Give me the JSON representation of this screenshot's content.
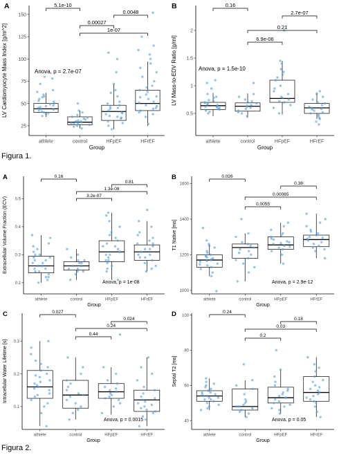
{
  "figure1_caption": "Figura 1.",
  "figure2_caption": "Figura 2.",
  "point_color": "#4e9de0",
  "chart_data": [
    {
      "id": "f1a",
      "letter": "A",
      "type": "box",
      "categories": [
        "athlete",
        "control",
        "HFpEF",
        "HFrEF"
      ],
      "xlabel": "Group",
      "ylabel": "LV Cardiomyocyte Mass Index [g/m^2]",
      "ylim": [
        14,
        160
      ],
      "yticks": [
        25,
        50,
        75,
        100,
        125,
        150
      ],
      "boxes": [
        {
          "min": 35,
          "q1": 40,
          "median": 44,
          "q3": 50,
          "max": 62
        },
        {
          "min": 22,
          "q1": 26,
          "median": 29,
          "q3": 35,
          "max": 42
        },
        {
          "min": 21,
          "q1": 31,
          "median": 41,
          "q3": 48,
          "max": 72
        },
        {
          "min": 25,
          "q1": 42,
          "median": 50,
          "q3": 65,
          "max": 97
        }
      ],
      "points": [
        [
          48,
          52,
          45,
          40,
          43,
          55,
          60,
          47,
          39,
          44,
          42,
          50,
          58,
          46,
          38,
          41,
          53,
          49,
          57,
          36,
          63,
          65,
          72,
          78,
          80
        ],
        [
          27,
          30,
          25,
          33,
          29,
          35,
          24,
          31,
          28,
          26,
          37,
          40,
          22,
          34,
          30,
          27,
          42,
          50,
          32,
          29
        ],
        [
          21,
          25,
          30,
          35,
          38,
          42,
          45,
          48,
          40,
          33,
          52,
          58,
          65,
          72,
          28,
          36,
          44,
          50,
          62,
          85,
          100,
          107,
          34,
          39,
          46
        ],
        [
          27,
          35,
          40,
          45,
          48,
          52,
          55,
          60,
          65,
          70,
          75,
          80,
          85,
          90,
          95,
          100,
          105,
          115,
          125,
          152,
          42,
          47,
          51,
          58,
          63,
          38,
          44,
          57,
          68,
          110
        ]
      ],
      "anova": "Anova, p = 2.7e-07",
      "brackets": [
        {
          "from": "athlete",
          "to": "control",
          "label": "5.1e-10"
        },
        {
          "from": "control",
          "to": "HFrEF",
          "label": "1e-07"
        },
        {
          "from": "control",
          "to": "HFpEF",
          "label": "0.00027"
        },
        {
          "from": "HFpEF",
          "to": "HFrEF",
          "label": "0.0048"
        }
      ]
    },
    {
      "id": "f1b",
      "letter": "B",
      "type": "box",
      "categories": [
        "athlete",
        "control",
        "HFpEF",
        "HFrEF"
      ],
      "xlabel": "Group",
      "ylabel": "LV Mass-to-EDV Ratio [g/ml]",
      "ylim": [
        0.1,
        2.45
      ],
      "yticks": [
        0.5,
        1.0,
        1.5,
        2.0
      ],
      "boxes": [
        {
          "min": 0.45,
          "q1": 0.57,
          "median": 0.64,
          "q3": 0.7,
          "max": 0.87
        },
        {
          "min": 0.42,
          "q1": 0.54,
          "median": 0.63,
          "q3": 0.69,
          "max": 0.86
        },
        {
          "min": 0.48,
          "q1": 0.7,
          "median": 0.77,
          "q3": 1.1,
          "max": 1.45
        },
        {
          "min": 0.4,
          "q1": 0.5,
          "median": 0.6,
          "q3": 0.68,
          "max": 0.88
        }
      ],
      "points": [
        [
          0.55,
          0.6,
          0.65,
          0.7,
          0.5,
          0.62,
          0.58,
          0.68,
          0.72,
          0.8,
          0.85,
          0.95,
          1.05,
          1.1,
          0.66,
          0.63,
          0.57,
          0.74,
          0.61,
          0.53,
          0.69,
          0.78
        ],
        [
          0.45,
          0.55,
          0.6,
          0.65,
          0.7,
          0.62,
          0.58,
          0.68,
          0.75,
          0.8,
          0.85,
          1.05,
          0.52,
          0.64,
          0.5,
          0.72
        ],
        [
          0.5,
          0.65,
          0.7,
          0.75,
          0.8,
          0.9,
          1.0,
          1.1,
          1.2,
          1.3,
          1.4,
          1.45,
          0.72,
          0.85,
          0.95,
          1.25,
          2.0,
          0.6,
          0.78,
          1.15
        ],
        [
          0.4,
          0.45,
          0.5,
          0.55,
          0.6,
          0.65,
          0.7,
          0.8,
          0.85,
          0.9,
          0.52,
          0.58,
          0.62,
          0.48,
          0.68,
          0.75,
          0.3,
          0.35,
          0.42,
          0.57
        ]
      ],
      "anova": "Anova, p = 1.5e-10",
      "brackets": [
        {
          "from": "athlete",
          "to": "control",
          "label": "0.16"
        },
        {
          "from": "HFpEF",
          "to": "HFrEF",
          "label": "2.7e-07"
        },
        {
          "from": "control",
          "to": "HFrEF",
          "label": "0.21"
        },
        {
          "from": "control",
          "to": "HFpEF",
          "label": "6.9e-06"
        }
      ]
    },
    {
      "id": "f2a",
      "letter": "A",
      "type": "box",
      "categories": [
        "athlete",
        "control",
        "HFpEF",
        "HFrEF"
      ],
      "xlabel": "Group",
      "ylabel": "Extracellular Volume Fraction (ECV)",
      "ylim": [
        0.16,
        0.58
      ],
      "yticks": [
        0.2,
        0.3,
        0.4,
        0.5
      ],
      "boxes": [
        {
          "min": 0.2,
          "q1": 0.235,
          "median": 0.26,
          "q3": 0.295,
          "max": 0.37
        },
        {
          "min": 0.21,
          "q1": 0.245,
          "median": 0.26,
          "q3": 0.275,
          "max": 0.32
        },
        {
          "min": 0.21,
          "q1": 0.275,
          "median": 0.31,
          "q3": 0.35,
          "max": 0.45
        },
        {
          "min": 0.24,
          "q1": 0.28,
          "median": 0.31,
          "q3": 0.335,
          "max": 0.42
        }
      ],
      "points": [
        [
          0.2,
          0.22,
          0.24,
          0.25,
          0.26,
          0.27,
          0.28,
          0.29,
          0.3,
          0.31,
          0.32,
          0.34,
          0.36,
          0.37,
          0.23,
          0.25,
          0.27,
          0.21,
          0.33,
          0.26,
          0.29,
          0.24,
          0.28,
          0.3,
          0.22
        ],
        [
          0.21,
          0.23,
          0.24,
          0.25,
          0.26,
          0.27,
          0.28,
          0.29,
          0.3,
          0.32,
          0.25,
          0.26,
          0.24,
          0.27,
          0.28
        ],
        [
          0.21,
          0.24,
          0.26,
          0.28,
          0.3,
          0.31,
          0.32,
          0.33,
          0.34,
          0.36,
          0.38,
          0.4,
          0.42,
          0.44,
          0.45,
          0.27,
          0.29,
          0.31,
          0.35,
          0.3,
          0.33,
          0.37,
          0.25,
          0.28
        ],
        [
          0.24,
          0.26,
          0.28,
          0.29,
          0.3,
          0.31,
          0.32,
          0.33,
          0.34,
          0.35,
          0.36,
          0.38,
          0.4,
          0.42,
          0.46,
          0.27,
          0.3,
          0.32,
          0.34,
          0.29,
          0.31,
          0.37,
          0.25
        ]
      ],
      "anova": "Anova, p = 1e-08",
      "brackets": [
        {
          "from": "athlete",
          "to": "control",
          "label": "0.16"
        },
        {
          "from": "HFpEF",
          "to": "HFrEF",
          "label": "0.81"
        },
        {
          "from": "control",
          "to": "HFrEF",
          "label": "1.3e-08"
        },
        {
          "from": "control",
          "to": "HFpEF",
          "label": "3.2e-07"
        }
      ]
    },
    {
      "id": "f2b",
      "letter": "B",
      "type": "box",
      "categories": [
        "athlete",
        "control",
        "HFpEF",
        "HFrEF"
      ],
      "xlabel": "Group",
      "ylabel": "T1 Native [ms]",
      "ylim": [
        980,
        1640
      ],
      "yticks": [
        1000,
        1200,
        1400,
        1600
      ],
      "boxes": [
        {
          "min": 1080,
          "q1": 1130,
          "median": 1170,
          "q3": 1200,
          "max": 1260
        },
        {
          "min": 1050,
          "q1": 1180,
          "median": 1240,
          "q3": 1260,
          "max": 1320
        },
        {
          "min": 1150,
          "q1": 1230,
          "median": 1255,
          "q3": 1300,
          "max": 1380
        },
        {
          "min": 1180,
          "q1": 1245,
          "median": 1285,
          "q3": 1310,
          "max": 1430
        }
      ],
      "points": [
        [
          1080,
          1100,
          1120,
          1140,
          1150,
          1160,
          1170,
          1180,
          1190,
          1200,
          1210,
          1220,
          1240,
          1260,
          1130,
          1175,
          1195,
          1165,
          1250,
          1280,
          1350,
          995,
          1145,
          1185
        ],
        [
          1050,
          1100,
          1150,
          1180,
          1200,
          1220,
          1240,
          1250,
          1260,
          1270,
          1300,
          1320,
          1400,
          1130,
          1210,
          1230,
          1170
        ],
        [
          1150,
          1200,
          1230,
          1240,
          1250,
          1260,
          1270,
          1290,
          1300,
          1320,
          1340,
          1360,
          1380,
          1220,
          1265,
          1285,
          1310,
          1245,
          1275
        ],
        [
          1180,
          1220,
          1240,
          1250,
          1260,
          1280,
          1290,
          1300,
          1310,
          1320,
          1340,
          1360,
          1380,
          1400,
          1430,
          1270,
          1295,
          1230,
          1330
        ]
      ],
      "anova": "Anova, p = 2.9e-12",
      "brackets": [
        {
          "from": "athlete",
          "to": "control",
          "label": "0.026"
        },
        {
          "from": "HFpEF",
          "to": "HFrEF",
          "label": "0.38"
        },
        {
          "from": "control",
          "to": "HFrEF",
          "label": "0.00065"
        },
        {
          "from": "control",
          "to": "HFpEF",
          "label": "0.0055"
        }
      ]
    },
    {
      "id": "f2c",
      "letter": "C",
      "type": "box",
      "categories": [
        "athlete",
        "control",
        "HFpEF",
        "HFrEF"
      ],
      "xlabel": "Group",
      "ylabel": "Intracellular Water Lifetime [s]",
      "ylim": [
        0.03,
        0.385
      ],
      "yticks": [
        0.1,
        0.2,
        0.3
      ],
      "boxes": [
        {
          "min": 0.04,
          "q1": 0.125,
          "median": 0.16,
          "q3": 0.21,
          "max": 0.3
        },
        {
          "min": 0.06,
          "q1": 0.095,
          "median": 0.135,
          "q3": 0.18,
          "max": 0.25
        },
        {
          "min": 0.075,
          "q1": 0.125,
          "median": 0.145,
          "q3": 0.17,
          "max": 0.22
        },
        {
          "min": 0.04,
          "q1": 0.085,
          "median": 0.12,
          "q3": 0.15,
          "max": 0.25
        }
      ],
      "points": [
        [
          0.04,
          0.08,
          0.1,
          0.12,
          0.13,
          0.14,
          0.15,
          0.16,
          0.17,
          0.18,
          0.19,
          0.2,
          0.21,
          0.22,
          0.24,
          0.26,
          0.28,
          0.3,
          0.11,
          0.135,
          0.155,
          0.175,
          0.195,
          0.23,
          0.165
        ],
        [
          0.06,
          0.08,
          0.1,
          0.11,
          0.12,
          0.13,
          0.14,
          0.15,
          0.16,
          0.18,
          0.2,
          0.22,
          0.25,
          0.09,
          0.135,
          0.17
        ],
        [
          0.08,
          0.1,
          0.12,
          0.13,
          0.14,
          0.15,
          0.16,
          0.17,
          0.18,
          0.2,
          0.22,
          0.32,
          0.135,
          0.145,
          0.155,
          0.11,
          0.125
        ],
        [
          0.04,
          0.06,
          0.08,
          0.09,
          0.1,
          0.11,
          0.12,
          0.13,
          0.14,
          0.15,
          0.16,
          0.18,
          0.2,
          0.22,
          0.25,
          0.07,
          0.095,
          0.115,
          0.125,
          0.105,
          0.085
        ]
      ],
      "anova": "Anova, p = 0.0015",
      "brackets": [
        {
          "from": "athlete",
          "to": "control",
          "label": "0.027"
        },
        {
          "from": "HFpEF",
          "to": "HFrEF",
          "label": "0.024"
        },
        {
          "from": "control",
          "to": "HFrEF",
          "label": "0.24"
        },
        {
          "from": "control",
          "to": "HFpEF",
          "label": "0.44"
        }
      ]
    },
    {
      "id": "f2d",
      "letter": "D",
      "type": "box",
      "categories": [
        "athlete",
        "control",
        "HFpEF",
        "HFrEF"
      ],
      "xlabel": "Group",
      "ylabel": "Septal T2 [ms]",
      "ylim": [
        35,
        101
      ],
      "yticks": [
        40,
        60,
        80,
        100
      ],
      "boxes": [
        {
          "min": 46,
          "q1": 51,
          "median": 54,
          "q3": 57,
          "max": 64
        },
        {
          "min": 42,
          "q1": 46,
          "median": 48,
          "q3": 58,
          "max": 63
        },
        {
          "min": 44,
          "q1": 50,
          "median": 53,
          "q3": 59,
          "max": 69
        },
        {
          "min": 42,
          "q1": 51,
          "median": 56,
          "q3": 65,
          "max": 76
        }
      ],
      "points": [
        [
          46,
          48,
          50,
          51,
          52,
          53,
          54,
          55,
          56,
          57,
          58,
          60,
          62,
          64,
          49,
          53,
          55,
          57,
          59,
          47,
          52,
          54,
          56,
          61
        ],
        [
          42,
          44,
          46,
          47,
          48,
          49,
          50,
          52,
          55,
          58,
          60,
          63,
          72,
          45,
          48,
          51
        ],
        [
          44,
          46,
          48,
          50,
          51,
          52,
          53,
          54,
          55,
          56,
          58,
          60,
          62,
          65,
          69,
          49,
          53,
          57,
          80,
          47
        ],
        [
          42,
          45,
          48,
          50,
          52,
          54,
          55,
          56,
          58,
          60,
          62,
          65,
          68,
          70,
          72,
          76,
          53,
          57,
          59,
          63,
          51
        ]
      ],
      "anova": "Anova, p = 0.05",
      "brackets": [
        {
          "from": "athlete",
          "to": "control",
          "label": "0.24"
        },
        {
          "from": "HFpEF",
          "to": "HFrEF",
          "label": "0.18"
        },
        {
          "from": "control",
          "to": "HFrEF",
          "label": "0.03"
        },
        {
          "from": "control",
          "to": "HFpEF",
          "label": "0.2"
        }
      ]
    }
  ]
}
